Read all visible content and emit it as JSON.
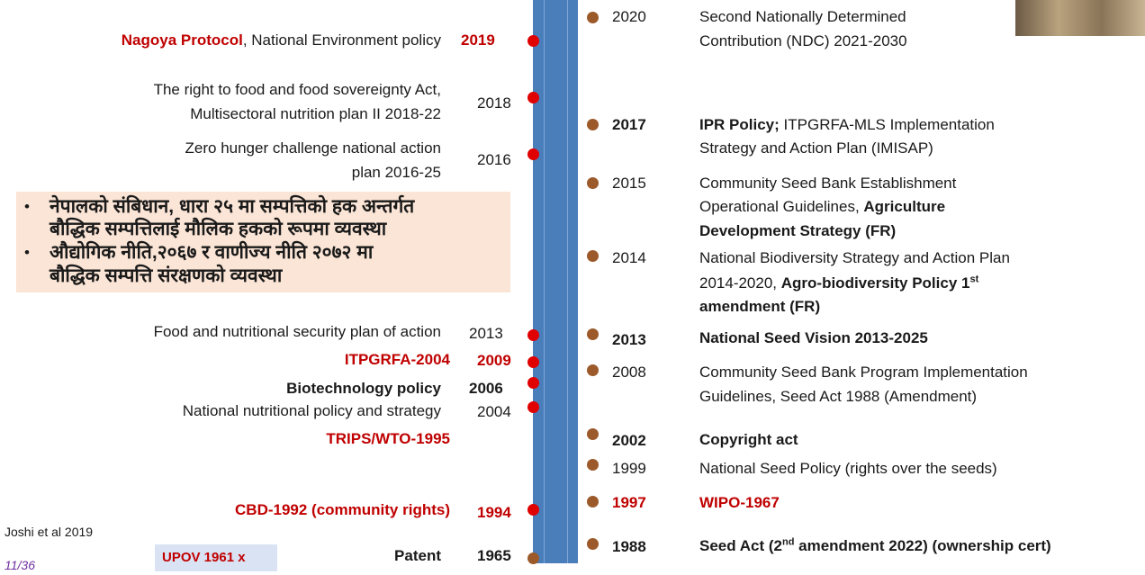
{
  "left_events": [
    {
      "lines": [
        [
          {
            "t": "Nagoya Protocol",
            "b": true,
            "c": "#c00000"
          },
          {
            "t": ", National Environment policy"
          }
        ]
      ],
      "year": {
        "t": "2019",
        "b": true,
        "c": "#c00000"
      },
      "dot_color": "#e00000"
    },
    {
      "lines": [
        [
          {
            "t": "The right to food and food sovereignty Act,"
          }
        ],
        [
          {
            "t": "Multisectoral nutrition plan II 2018-22"
          }
        ]
      ],
      "year": {
        "t": "2018"
      },
      "dot_color": "#e00000"
    },
    {
      "lines": [
        [
          {
            "t": "Zero hunger challenge national action"
          }
        ],
        [
          {
            "t": "plan 2016-25"
          }
        ]
      ],
      "year": {
        "t": "2016"
      },
      "dot_color": "#e00000"
    },
    {
      "lines": [
        [
          {
            "t": "Food and nutritional security plan of action"
          }
        ]
      ],
      "year": {
        "t": "2013"
      },
      "dot_color": "#e00000"
    },
    {
      "lines": [
        [
          {
            "t": "ITPGRFA-2004",
            "b": true,
            "c": "#c00000"
          }
        ]
      ],
      "year": {
        "t": "2009",
        "b": true,
        "c": "#c00000"
      },
      "dot_color": "#e00000"
    },
    {
      "lines": [
        [
          {
            "t": "Biotechnology policy",
            "b": true
          }
        ]
      ],
      "year": {
        "t": "2006",
        "b": true
      },
      "dot_color": "#e00000"
    },
    {
      "lines": [
        [
          {
            "t": "National nutritional policy and strategy"
          }
        ]
      ],
      "year": {
        "t": "2004"
      },
      "dot_color": "#e00000"
    },
    {
      "lines": [
        [
          {
            "t": "TRIPS/WTO-1995",
            "b": true,
            "c": "#c00000"
          }
        ]
      ]
    },
    {
      "lines": [
        [
          {
            "t": "CBD-1992 (community rights)",
            "b": true,
            "c": "#c00000"
          }
        ]
      ],
      "year": {
        "t": "1994",
        "b": true,
        "c": "#c00000"
      },
      "dot_color": "#e00000"
    },
    {
      "lines": [
        [
          {
            "t": "Patent",
            "b": true
          }
        ]
      ],
      "year": {
        "t": "1965",
        "b": true
      },
      "dot_color": "#9c5a2b"
    }
  ],
  "right_events": [
    {
      "year": {
        "t": "2020"
      },
      "lines": [
        [
          {
            "t": "Second Nationally Determined"
          }
        ],
        [
          {
            "t": "Contribution (NDC) 2021-2030"
          }
        ]
      ]
    },
    {
      "year": {
        "t": "2017",
        "b": true
      },
      "lines": [
        [
          {
            "t": "IPR Policy;",
            "b": true
          },
          {
            "t": " ITPGRFA-MLS Implementation"
          }
        ],
        [
          {
            "t": "Strategy and Action Plan (IMISAP)"
          }
        ]
      ]
    },
    {
      "year": {
        "t": "2015"
      },
      "lines": [
        [
          {
            "t": "Community Seed Bank Establishment"
          }
        ],
        [
          {
            "t": "Operational Guidelines, "
          },
          {
            "t": "Agriculture",
            "b": true
          }
        ],
        [
          {
            "t": "Development Strategy (FR)",
            "b": true
          }
        ]
      ]
    },
    {
      "year": {
        "t": "2014"
      },
      "lines": [
        [
          {
            "t": "National Biodiversity Strategy and Action Plan"
          }
        ],
        [
          {
            "t": "2014-2020, "
          },
          {
            "t": "Agro-biodiversity Policy 1",
            "b": true
          },
          {
            "t": "st",
            "b": true,
            "sup": true
          }
        ],
        [
          {
            "t": "amendment (FR)",
            "b": true
          }
        ]
      ]
    },
    {
      "year": {
        "t": "2013",
        "b": true
      },
      "lines": [
        [
          {
            "t": "National Seed Vision 2013-2025",
            "b": true
          }
        ]
      ]
    },
    {
      "year": {
        "t": "2008"
      },
      "lines": [
        [
          {
            "t": "Community Seed Bank Program Implementation"
          }
        ],
        [
          {
            "t": "Guidelines, Seed Act 1988 (Amendment)"
          }
        ]
      ]
    },
    {
      "year": {
        "t": "2002",
        "b": true
      },
      "lines": [
        [
          {
            "t": "Copyright act",
            "b": true
          }
        ]
      ]
    },
    {
      "year": {
        "t": "1999"
      },
      "lines": [
        [
          {
            "t": "National Seed Policy (rights over the seeds)"
          }
        ]
      ]
    },
    {
      "year": {
        "t": "1997",
        "b": true,
        "c": "#c00000"
      },
      "lines": [
        [
          {
            "t": "WIPO-1967",
            "b": true,
            "c": "#c00000"
          }
        ]
      ]
    },
    {
      "year": {
        "t": "1988",
        "b": true
      },
      "lines": [
        [
          {
            "t": "Seed Act (2",
            "b": true
          },
          {
            "t": "nd",
            "b": true,
            "sup": true
          },
          {
            "t": " amendment 2022) (ownership cert)",
            "b": true
          }
        ]
      ]
    }
  ],
  "nepali_box": [
    [
      "नेपालको संबिधान, धारा २५ मा सम्पत्तिको हक अन्तर्गत",
      "बौद्धिक सम्पत्तिलाई मौलिक हकको रूपमा व्यवस्था"
    ],
    [
      "औद्योगिक नीति,२०६७ र वाणीज्य नीति २०७२ मा",
      "बौद्धिक सम्पत्ति संरक्षणको व्यवस्था"
    ]
  ],
  "citation": "Joshi et al 2019",
  "page_number": "11/36",
  "upov_label": "UPOV 1961 x"
}
